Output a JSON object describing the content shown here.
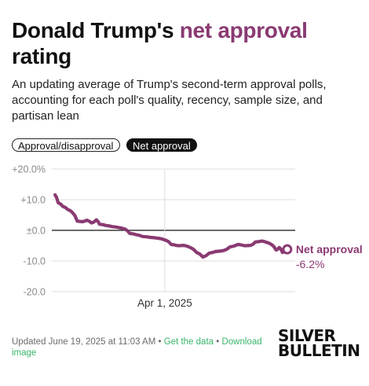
{
  "header": {
    "title_prefix": "Donald Trump's ",
    "title_accent": "net approval",
    "title_suffix": "rating",
    "subtitle": "An updating average of Trump's second-term approval polls, accounting for each poll's quality, recency, sample size, and partisan lean"
  },
  "toggles": {
    "approval_disapproval": "Approval/disapproval",
    "net_approval": "Net approval"
  },
  "colors": {
    "accent": "#8a3a72",
    "link": "#3bb56b"
  },
  "chart_data": {
    "type": "line",
    "title": "",
    "xlabel": "",
    "ylabel": "",
    "ylim": [
      -20,
      20
    ],
    "yticks": [
      20,
      10,
      0,
      -10,
      -20
    ],
    "ytick_labels": [
      "+20.0%",
      "+10.0",
      "±0.0",
      "-10.0",
      "-20.0"
    ],
    "xticks": [
      {
        "x": "2025-04-01",
        "label": "Apr 1, 2025"
      }
    ],
    "xlim": [
      "2025-01-20",
      "2025-06-22"
    ],
    "grid": true,
    "series": [
      {
        "name": "Net approval",
        "last_label": "-6.2%",
        "points": [
          {
            "x": "2025-01-22",
            "y": 11.6
          },
          {
            "x": "2025-01-24",
            "y": 9.0
          },
          {
            "x": "2025-01-27",
            "y": 7.8
          },
          {
            "x": "2025-01-30",
            "y": 6.8
          },
          {
            "x": "2025-02-02",
            "y": 5.8
          },
          {
            "x": "2025-02-05",
            "y": 3.0
          },
          {
            "x": "2025-02-08",
            "y": 2.8
          },
          {
            "x": "2025-02-11",
            "y": 3.3
          },
          {
            "x": "2025-02-14",
            "y": 2.4
          },
          {
            "x": "2025-02-17",
            "y": 3.4
          },
          {
            "x": "2025-02-19",
            "y": 2.0
          },
          {
            "x": "2025-02-23",
            "y": 1.6
          },
          {
            "x": "2025-02-27",
            "y": 1.2
          },
          {
            "x": "2025-03-03",
            "y": 0.9
          },
          {
            "x": "2025-03-07",
            "y": 0.4
          },
          {
            "x": "2025-03-10",
            "y": -1.0
          },
          {
            "x": "2025-03-14",
            "y": -1.4
          },
          {
            "x": "2025-03-18",
            "y": -2.0
          },
          {
            "x": "2025-03-23",
            "y": -2.3
          },
          {
            "x": "2025-03-28",
            "y": -2.6
          },
          {
            "x": "2025-04-02",
            "y": -3.3
          },
          {
            "x": "2025-04-05",
            "y": -4.6
          },
          {
            "x": "2025-04-09",
            "y": -5.0
          },
          {
            "x": "2025-04-13",
            "y": -4.9
          },
          {
            "x": "2025-04-17",
            "y": -5.6
          },
          {
            "x": "2025-04-21",
            "y": -7.2
          },
          {
            "x": "2025-04-25",
            "y": -8.7
          },
          {
            "x": "2025-04-29",
            "y": -7.4
          },
          {
            "x": "2025-05-03",
            "y": -6.9
          },
          {
            "x": "2025-05-08",
            "y": -6.6
          },
          {
            "x": "2025-05-12",
            "y": -5.4
          },
          {
            "x": "2025-05-17",
            "y": -4.6
          },
          {
            "x": "2025-05-21",
            "y": -5.0
          },
          {
            "x": "2025-05-25",
            "y": -4.9
          },
          {
            "x": "2025-05-28",
            "y": -3.8
          },
          {
            "x": "2025-06-01",
            "y": -3.5
          },
          {
            "x": "2025-06-04",
            "y": -3.9
          },
          {
            "x": "2025-06-07",
            "y": -4.6
          },
          {
            "x": "2025-06-10",
            "y": -6.4
          },
          {
            "x": "2025-06-12",
            "y": -5.6
          },
          {
            "x": "2025-06-14",
            "y": -7.2
          },
          {
            "x": "2025-06-17",
            "y": -6.2
          }
        ]
      }
    ]
  },
  "footer": {
    "updated": "Updated June 19, 2025 at 11:03 AM",
    "separator": "•",
    "get_data": "Get the data",
    "download_image": "Download image"
  },
  "logo": {
    "line1": "SILVER",
    "line2": "BULLETIN"
  }
}
